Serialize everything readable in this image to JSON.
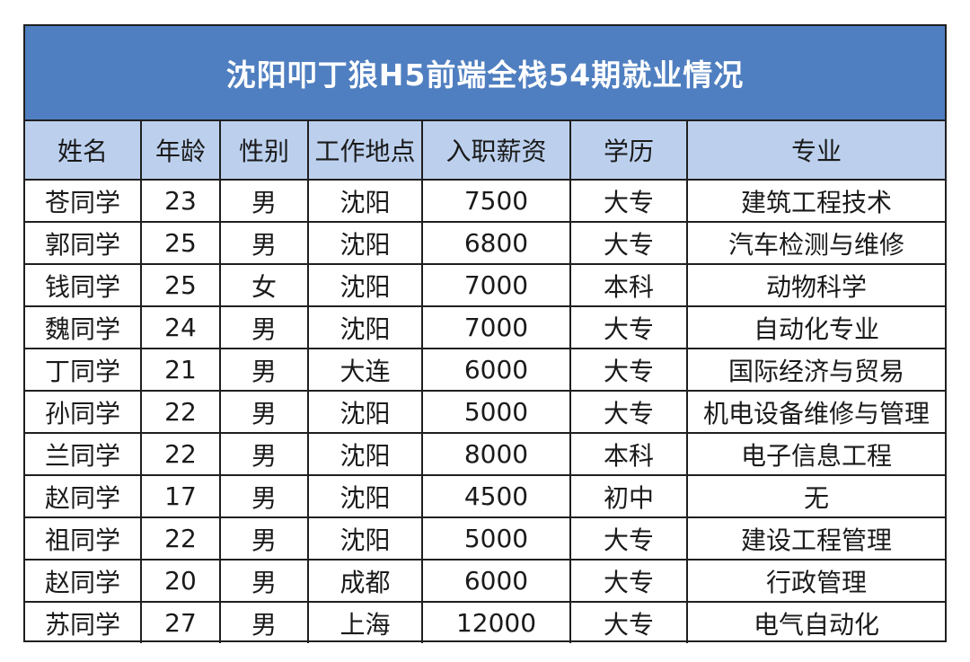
{
  "title": "沈阳叩丁狼H5前端全栈54期就业情况",
  "accent_color": "#4f7fc0",
  "header_bg_color": "#bcd0ee",
  "columns": [
    "姓名",
    "年龄",
    "性别",
    "工作地点",
    "入职薪资",
    "学历",
    "专业"
  ],
  "rows": [
    [
      "苍同学",
      "23",
      "男",
      "沈阳",
      "7500",
      "大专",
      "建筑工程技术"
    ],
    [
      "郭同学",
      "25",
      "男",
      "沈阳",
      "6800",
      "大专",
      "汽车检测与维修"
    ],
    [
      "钱同学",
      "25",
      "女",
      "沈阳",
      "7000",
      "本科",
      "动物科学"
    ],
    [
      "魏同学",
      "24",
      "男",
      "沈阳",
      "7000",
      "大专",
      "自动化专业"
    ],
    [
      "丁同学",
      "21",
      "男",
      "大连",
      "6000",
      "大专",
      "国际经济与贸易"
    ],
    [
      "孙同学",
      "22",
      "男",
      "沈阳",
      "5000",
      "大专",
      "机电设备维修与管理"
    ],
    [
      "兰同学",
      "22",
      "男",
      "沈阳",
      "8000",
      "本科",
      "电子信息工程"
    ],
    [
      "赵同学",
      "17",
      "男",
      "沈阳",
      "4500",
      "初中",
      "无"
    ],
    [
      "祖同学",
      "22",
      "男",
      "沈阳",
      "5000",
      "大专",
      "建设工程管理"
    ],
    [
      "赵同学",
      "20",
      "男",
      "成都",
      "6000",
      "大专",
      "行政管理"
    ],
    [
      "苏同学",
      "27",
      "男",
      "上海",
      "12000",
      "大专",
      "电气自动化"
    ]
  ]
}
